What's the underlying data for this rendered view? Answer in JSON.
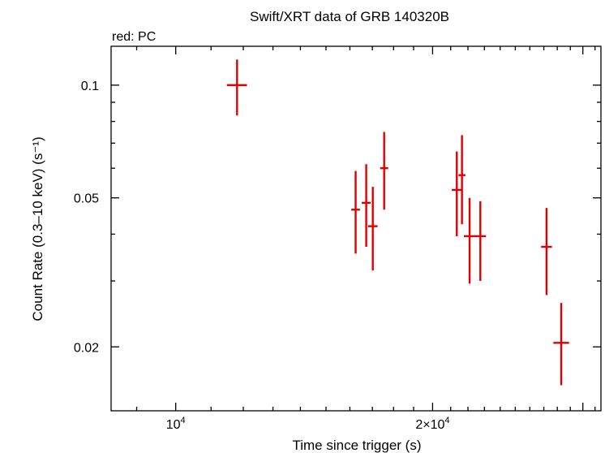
{
  "chart_data": {
    "type": "scatter",
    "title": "Swift/XRT data of GRB 140320B",
    "subtitle": "red: PC",
    "xlabel": "Time since trigger (s)",
    "ylabel": "Count Rate (0.3–10 keV) (s⁻¹)",
    "x_scale": "log",
    "y_scale": "log",
    "xlim": [
      8400,
      31500
    ],
    "ylim": [
      0.0135,
      0.127
    ],
    "x_ticks": [
      {
        "value": 10000,
        "base": "10",
        "exp": "4"
      },
      {
        "value": 20000,
        "base": "2×10",
        "exp": "4"
      }
    ],
    "y_ticks": [
      {
        "value": 0.1,
        "label": "0.1"
      },
      {
        "value": 0.05,
        "label": "0.05"
      },
      {
        "value": 0.02,
        "label": "0.02"
      }
    ],
    "color": "#e00000",
    "series": [
      {
        "points": [
          {
            "x": 11800,
            "xlo": 11480,
            "xhi": 12120,
            "y": 0.1,
            "ylo": 0.083,
            "yhi": 0.117
          },
          {
            "x": 16250,
            "xlo": 16060,
            "xhi": 16440,
            "y": 0.0465,
            "ylo": 0.0355,
            "yhi": 0.059
          },
          {
            "x": 16720,
            "xlo": 16520,
            "xhi": 16920,
            "y": 0.0485,
            "ylo": 0.037,
            "yhi": 0.0615
          },
          {
            "x": 17020,
            "xlo": 16800,
            "xhi": 17240,
            "y": 0.042,
            "ylo": 0.032,
            "yhi": 0.0535
          },
          {
            "x": 17550,
            "xlo": 17360,
            "xhi": 17740,
            "y": 0.06,
            "ylo": 0.0465,
            "yhi": 0.075
          },
          {
            "x": 21350,
            "xlo": 21060,
            "xhi": 21640,
            "y": 0.0525,
            "ylo": 0.0395,
            "yhi": 0.0665
          },
          {
            "x": 21650,
            "xlo": 21450,
            "xhi": 21850,
            "y": 0.0575,
            "ylo": 0.0425,
            "yhi": 0.0735
          },
          {
            "x": 22100,
            "xlo": 21760,
            "xhi": 22440,
            "y": 0.0395,
            "ylo": 0.0295,
            "yhi": 0.05
          },
          {
            "x": 22750,
            "xlo": 22400,
            "xhi": 23100,
            "y": 0.0395,
            "ylo": 0.03,
            "yhi": 0.049
          },
          {
            "x": 27200,
            "xlo": 26800,
            "xhi": 27600,
            "y": 0.037,
            "ylo": 0.0275,
            "yhi": 0.047
          },
          {
            "x": 28300,
            "xlo": 27700,
            "xhi": 28900,
            "y": 0.0205,
            "ylo": 0.0158,
            "yhi": 0.0262
          }
        ]
      }
    ]
  }
}
